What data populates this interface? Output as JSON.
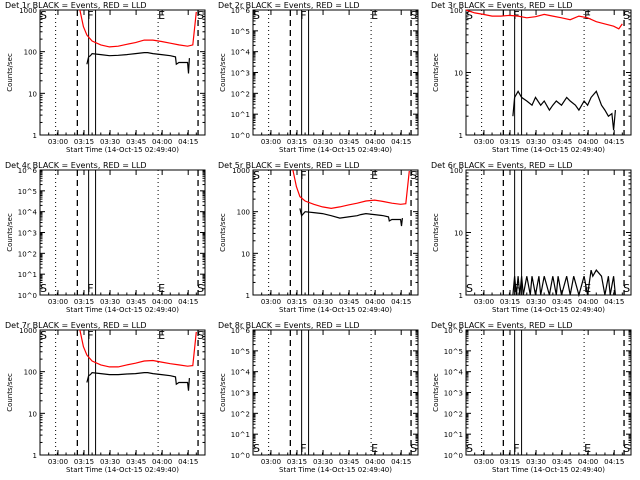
{
  "figure": {
    "x_tick_labels": [
      "03:00",
      "03:15",
      "03:30",
      "03:45",
      "04:00",
      "04:15"
    ],
    "x_label": "Start Time (14-Oct-15 02:49:40)",
    "y_label": "Counts/sec",
    "colors": {
      "events": "#000000",
      "lld": "#ff0000",
      "background": "#ffffff"
    },
    "marker_letters": [
      "S",
      "F",
      "E",
      "S"
    ]
  },
  "chart_data": [
    {
      "type": "line",
      "title": "Det 1r BLACK = Events, RED = LLD",
      "yscale": "log",
      "xlim_min": [
        0,
        95
      ],
      "ylim": [
        1,
        1000
      ],
      "y_tick_labels": [
        "1",
        "10",
        "100",
        "1000"
      ],
      "series": [
        {
          "name": "Events",
          "color": "#000000",
          "x": [
            27,
            28,
            29,
            30,
            35,
            40,
            45,
            50,
            55,
            60,
            62,
            65,
            70,
            75,
            78,
            78.5,
            80,
            83,
            85,
            85.5,
            86
          ],
          "y": [
            50,
            75,
            80,
            90,
            85,
            80,
            82,
            85,
            90,
            95,
            95,
            90,
            85,
            80,
            75,
            50,
            55,
            55,
            55,
            30,
            70
          ]
        },
        {
          "name": "LLD",
          "color": "#ff0000",
          "x": [
            23,
            25,
            27,
            30,
            35,
            40,
            45,
            50,
            55,
            60,
            65,
            70,
            75,
            80,
            85,
            88,
            90
          ],
          "y": [
            1000,
            400,
            250,
            180,
            145,
            130,
            135,
            150,
            165,
            190,
            190,
            175,
            160,
            145,
            135,
            145,
            900
          ]
        }
      ]
    },
    {
      "type": "line",
      "title": "Det 2r BLACK = Events, RED = LLD",
      "yscale": "log",
      "ylim": [
        1,
        1000000
      ],
      "y_tick_labels": [
        "10^0",
        "10^1",
        "10^2",
        "10^3",
        "10^4",
        "10^5",
        "10^6"
      ],
      "series": []
    },
    {
      "type": "line",
      "title": "Det 3r BLACK = Events, RED = LLD",
      "yscale": "log",
      "ylim": [
        1,
        100
      ],
      "y_tick_labels": [
        "1",
        "10",
        "100"
      ],
      "series": [
        {
          "name": "Events",
          "color": "#000000",
          "x": [
            27,
            28,
            30,
            32,
            35,
            38,
            40,
            43,
            45,
            48,
            50,
            52,
            55,
            58,
            60,
            63,
            65,
            68,
            70,
            72,
            75,
            78,
            80,
            82,
            84,
            85,
            86
          ],
          "y": [
            2,
            4,
            5,
            4,
            3.5,
            3,
            4,
            3,
            3.5,
            2.5,
            3,
            3.5,
            3,
            4,
            3.5,
            3,
            2.5,
            3.5,
            3,
            4,
            5,
            3,
            2.5,
            2,
            2.2,
            1.2,
            2.5
          ]
        },
        {
          "name": "LLD",
          "color": "#ff0000",
          "x": [
            0,
            5,
            10,
            15,
            20,
            25,
            30,
            35,
            40,
            45,
            50,
            55,
            60,
            65,
            70,
            75,
            80,
            85,
            88,
            90
          ],
          "y": [
            100,
            90,
            85,
            80,
            80,
            82,
            80,
            75,
            78,
            85,
            80,
            75,
            70,
            80,
            75,
            65,
            60,
            55,
            50,
            60
          ]
        }
      ]
    },
    {
      "type": "line",
      "title": "Det 4r BLACK = Events, RED = LLD",
      "yscale": "log",
      "ylim": [
        1,
        1000000
      ],
      "y_tick_labels": [
        "10^0",
        "10^1",
        "10^2",
        "10^3",
        "10^4",
        "10^5",
        "10^6"
      ],
      "series": []
    },
    {
      "type": "line",
      "title": "Det 5r BLACK = Events, RED = LLD",
      "yscale": "log",
      "ylim": [
        1,
        1000
      ],
      "y_tick_labels": [
        "1",
        "10",
        "100",
        "1000"
      ],
      "series": [
        {
          "name": "Events",
          "color": "#000000",
          "x": [
            27,
            28,
            30,
            35,
            40,
            45,
            50,
            55,
            60,
            62,
            65,
            70,
            75,
            78,
            78.5,
            80,
            83,
            85,
            85.5,
            86
          ],
          "y": [
            120,
            80,
            100,
            95,
            90,
            80,
            70,
            75,
            80,
            85,
            90,
            85,
            80,
            75,
            60,
            65,
            65,
            65,
            45,
            70
          ]
        },
        {
          "name": "LLD",
          "color": "#ff0000",
          "x": [
            23,
            25,
            27,
            30,
            35,
            40,
            45,
            50,
            55,
            60,
            65,
            70,
            75,
            80,
            85,
            88,
            90
          ],
          "y": [
            1000,
            400,
            230,
            180,
            150,
            130,
            120,
            130,
            145,
            160,
            180,
            190,
            175,
            160,
            150,
            155,
            950
          ]
        }
      ]
    },
    {
      "type": "line",
      "title": "Det 6r BLACK = Events, RED = LLD",
      "yscale": "log",
      "ylim": [
        1,
        100
      ],
      "y_tick_labels": [
        "1",
        "10",
        "100"
      ],
      "series": [
        {
          "name": "Events",
          "color": "#000000",
          "x": [
            27,
            28,
            29,
            30,
            31,
            32,
            33,
            35,
            37,
            38,
            40,
            42,
            43,
            45,
            48,
            50,
            52,
            53,
            55,
            58,
            60,
            62,
            65,
            68,
            70,
            72,
            73,
            75,
            78,
            80,
            82,
            83,
            85,
            86
          ],
          "y": [
            1,
            2,
            1,
            2,
            1,
            2,
            1,
            2,
            1,
            2,
            1,
            2,
            1,
            2,
            1,
            2,
            1,
            2,
            1,
            2,
            1,
            2,
            1,
            2,
            1,
            2.5,
            2,
            2.5,
            2,
            1,
            2,
            1,
            2,
            1
          ]
        }
      ]
    },
    {
      "type": "line",
      "title": "Det 7r BLACK = Events, RED = LLD",
      "yscale": "log",
      "ylim": [
        1,
        1000
      ],
      "y_tick_labels": [
        "1",
        "10",
        "100",
        "1000"
      ],
      "series": [
        {
          "name": "Events",
          "color": "#000000",
          "x": [
            27,
            28,
            29,
            30,
            35,
            40,
            45,
            50,
            55,
            60,
            62,
            65,
            70,
            75,
            78,
            78.5,
            80,
            83,
            85,
            85.5,
            86
          ],
          "y": [
            55,
            80,
            85,
            95,
            90,
            85,
            85,
            88,
            90,
            95,
            95,
            90,
            85,
            80,
            75,
            50,
            55,
            55,
            55,
            35,
            70
          ]
        },
        {
          "name": "LLD",
          "color": "#ff0000",
          "x": [
            23,
            25,
            27,
            30,
            35,
            40,
            45,
            50,
            55,
            60,
            65,
            70,
            75,
            80,
            85,
            88,
            90
          ],
          "y": [
            1000,
            400,
            250,
            180,
            145,
            130,
            130,
            145,
            160,
            180,
            185,
            170,
            155,
            145,
            135,
            140,
            900
          ]
        }
      ]
    },
    {
      "type": "line",
      "title": "Det 8r BLACK = Events, RED = LLD",
      "yscale": "log",
      "ylim": [
        1,
        1000000
      ],
      "y_tick_labels": [
        "10^0",
        "10^1",
        "10^2",
        "10^3",
        "10^4",
        "10^5",
        "10^6"
      ],
      "series": []
    },
    {
      "type": "line",
      "title": "Det 9r BLACK = Events, RED = LLD",
      "yscale": "log",
      "ylim": [
        1,
        1000000
      ],
      "y_tick_labels": [
        "10^0",
        "10^1",
        "10^2",
        "10^3",
        "10^4",
        "10^5",
        "10^6"
      ],
      "series": []
    }
  ]
}
